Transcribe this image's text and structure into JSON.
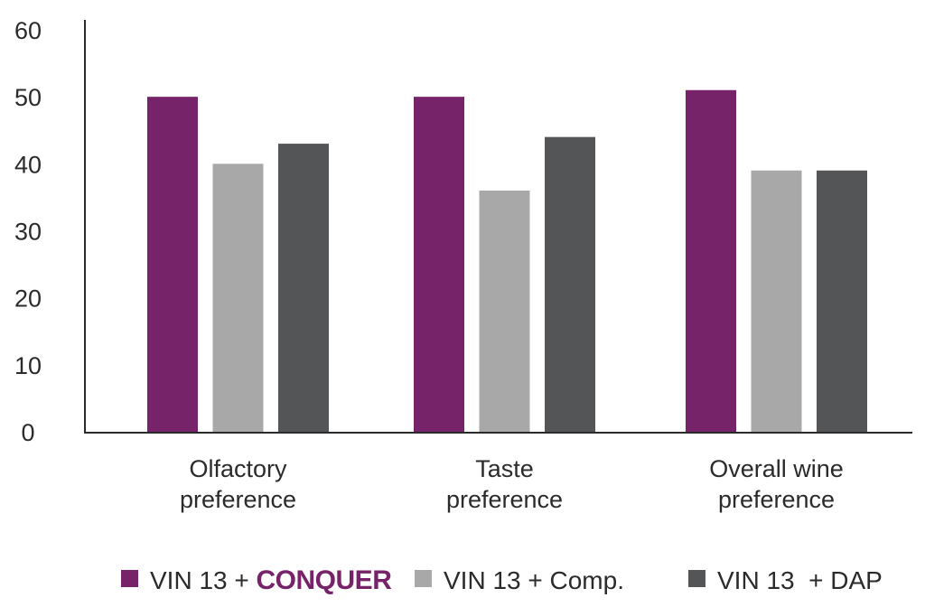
{
  "chart_data": {
    "type": "bar",
    "title": "",
    "xlabel": "",
    "ylabel": "",
    "ylim": [
      0,
      60
    ],
    "yticks": [
      0,
      10,
      20,
      30,
      40,
      50,
      60
    ],
    "grid": false,
    "legend_position": "bottom",
    "categories": [
      [
        "Olfactory",
        "preference"
      ],
      [
        "Taste",
        "preference"
      ],
      [
        "Overall wine",
        "preference"
      ]
    ],
    "series": [
      {
        "name": "VIN 13 + CONQUER",
        "legend_prefix": "VIN 13 + ",
        "legend_brand": "CONQUER",
        "color": "#76236a",
        "values": [
          50,
          50,
          51
        ]
      },
      {
        "name": "VIN 13 + Comp.",
        "color": "#a8a8a9",
        "values": [
          40,
          36,
          39
        ]
      },
      {
        "name": "VIN 13  + DAP",
        "color": "#535556",
        "values": [
          43,
          44,
          39
        ]
      }
    ]
  }
}
